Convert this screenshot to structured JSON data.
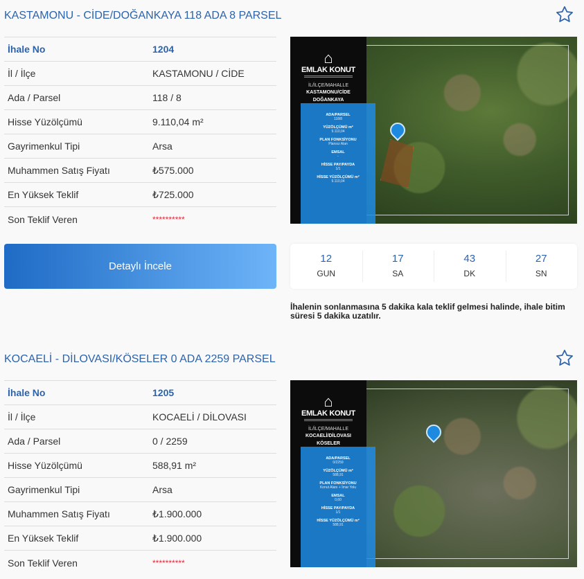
{
  "colors": {
    "accent": "#2b63ad",
    "masked": "#e0263a",
    "button_start": "#1f6bc5",
    "button_end": "#6db4f8"
  },
  "listings": [
    {
      "title": "KASTAMONU - CİDE/DOĞANKAYA 118 ADA 8 PARSEL",
      "favorite_icon": "star-outline-icon",
      "rows": [
        {
          "label": "İhale No",
          "value": "1204"
        },
        {
          "label": "İl / İlçe",
          "value": "KASTAMONU / CİDE"
        },
        {
          "label": "Ada / Parsel",
          "value": "118 / 8"
        },
        {
          "label": "Hisse Yüzölçümü",
          "value": "9.110,04 m²"
        },
        {
          "label": "Gayrimenkul Tipi",
          "value": "Arsa"
        },
        {
          "label": "Muhammen Satış Fiyatı",
          "value": "₺575.000"
        },
        {
          "label": "En Yüksek Teklif",
          "value": "₺725.000"
        },
        {
          "label": "Son Teklif Veren",
          "value": "**********"
        }
      ],
      "image": {
        "brand": "EMLAK KONUT",
        "ilce_label": "İL/İLÇE/MAHALLE",
        "place_line1": "KASTAMONU/CİDE",
        "place_line2": "DOĞANKAYA",
        "fields": [
          {
            "label": "ADA/PARSEL",
            "value": "118/8"
          },
          {
            "label": "YÜZÖLÇÜMÜ m²",
            "value": "9.110,04"
          },
          {
            "label": "PLAN FONKSİYONU",
            "value": "Plansız Alan"
          },
          {
            "label": "EMSAL",
            "value": "-"
          },
          {
            "label": "HİSSE PAY/PAYDA",
            "value": "1/1"
          },
          {
            "label": "HİSSE YÜZÖLÇÜMÜ m²",
            "value": "9.110,04"
          }
        ]
      },
      "detail_button": "Detaylı İncele",
      "countdown": [
        {
          "value": "12",
          "unit": "GUN"
        },
        {
          "value": "17",
          "unit": "SA"
        },
        {
          "value": "43",
          "unit": "DK"
        },
        {
          "value": "27",
          "unit": "SN"
        }
      ],
      "note": "İhalenin sonlanmasına 5 dakika kala teklif gelmesi halinde, ihale bitim süresi 5 dakika uzatılır."
    },
    {
      "title": "KOCAELİ - DİLOVASI/KÖSELER 0 ADA 2259 PARSEL",
      "favorite_icon": "star-outline-icon",
      "rows": [
        {
          "label": "İhale No",
          "value": "1205"
        },
        {
          "label": "İl / İlçe",
          "value": "KOCAELİ / DİLOVASI"
        },
        {
          "label": "Ada / Parsel",
          "value": "0 / 2259"
        },
        {
          "label": "Hisse Yüzölçümü",
          "value": "588,91 m²"
        },
        {
          "label": "Gayrimenkul Tipi",
          "value": "Arsa"
        },
        {
          "label": "Muhammen Satış Fiyatı",
          "value": "₺1.900.000"
        },
        {
          "label": "En Yüksek Teklif",
          "value": "₺1.900.000"
        },
        {
          "label": "Son Teklif Veren",
          "value": "**********"
        }
      ],
      "image": {
        "brand": "EMLAK KONUT",
        "ilce_label": "İL/İLÇE/MAHALLE",
        "place_line1": "KOCAELİ/DİLOVASI",
        "place_line2": "KÖSELER",
        "fields": [
          {
            "label": "ADA/PARSEL",
            "value": "0/2259"
          },
          {
            "label": "YÜZÖLÇÜMÜ m²",
            "value": "588,91"
          },
          {
            "label": "PLAN FONKSİYONU",
            "value": "Konut Alanı + İmar Yolu"
          },
          {
            "label": "EMSAL",
            "value": "0,60"
          },
          {
            "label": "HİSSE PAY/PAYDA",
            "value": "1/1"
          },
          {
            "label": "HİSSE YÜZÖLÇÜMÜ m²",
            "value": "588,91"
          }
        ]
      }
    }
  ]
}
